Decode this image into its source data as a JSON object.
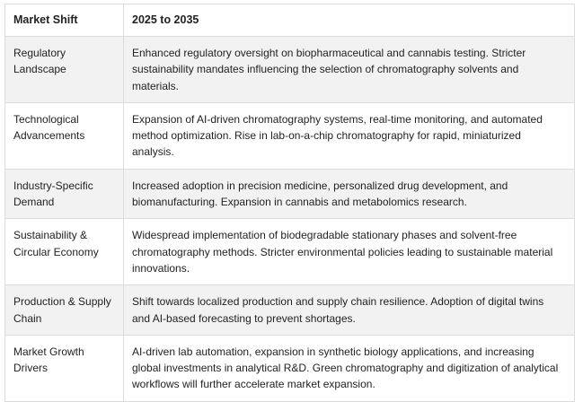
{
  "table": {
    "headers": [
      "Market Shift",
      "2025 to 2035"
    ],
    "rows": [
      {
        "label": [
          "Regulatory",
          "Landscape"
        ],
        "text": [
          "Enhanced regulatory oversight on biopharmaceutical and cannabis testing. Stricter",
          "sustainability mandates influencing the selection of chromatography solvents and",
          "materials."
        ]
      },
      {
        "label": [
          "Technological",
          "Advancements"
        ],
        "text": [
          "Expansion of AI-driven chromatography systems, real-time monitoring, and automated",
          "method optimization. Rise in lab-on-a-chip chromatography for rapid, miniaturized",
          "analysis."
        ]
      },
      {
        "label": [
          "Industry-Specific",
          "Demand"
        ],
        "text": [
          "Increased adoption in precision medicine, personalized drug development, and",
          "biomanufacturing. Expansion in cannabis and metabolomics research."
        ]
      },
      {
        "label": [
          "Sustainability &",
          "Circular Economy"
        ],
        "text": [
          "Widespread implementation of biodegradable stationary phases and solvent-free",
          "chromatography methods. Stricter environmental policies leading to sustainable material",
          "innovations."
        ]
      },
      {
        "label": [
          "Production & Supply",
          "Chain"
        ],
        "text": [
          "Shift towards localized production and supply chain resilience. Adoption of digital twins",
          "and AI-based forecasting to prevent shortages."
        ]
      },
      {
        "label": [
          "Market Growth",
          "Drivers"
        ],
        "text": [
          "AI-driven lab automation, expansion in synthetic biology applications, and increasing",
          "global investments in analytical R&D. Green chromatography and digitization of analytical",
          "workflows will further accelerate market expansion."
        ]
      }
    ]
  }
}
